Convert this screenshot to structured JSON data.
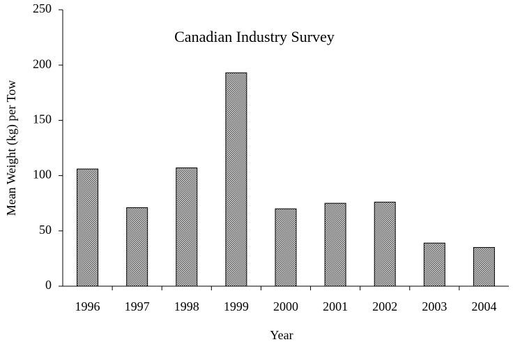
{
  "chart_data": {
    "type": "bar",
    "title": "Canadian Industry Survey",
    "x_label": "Year",
    "y_label": "Mean Weight (kg) per Tow",
    "categories": [
      "1996",
      "1997",
      "1998",
      "1999",
      "2000",
      "2001",
      "2002",
      "2003",
      "2004"
    ],
    "values": [
      106,
      71,
      107,
      193,
      70,
      75,
      76,
      39,
      35
    ],
    "color": "#8c8c8c",
    "ylim": [
      0,
      250
    ],
    "yticks": [
      0,
      50,
      100,
      150,
      200,
      250
    ],
    "grid": false
  }
}
